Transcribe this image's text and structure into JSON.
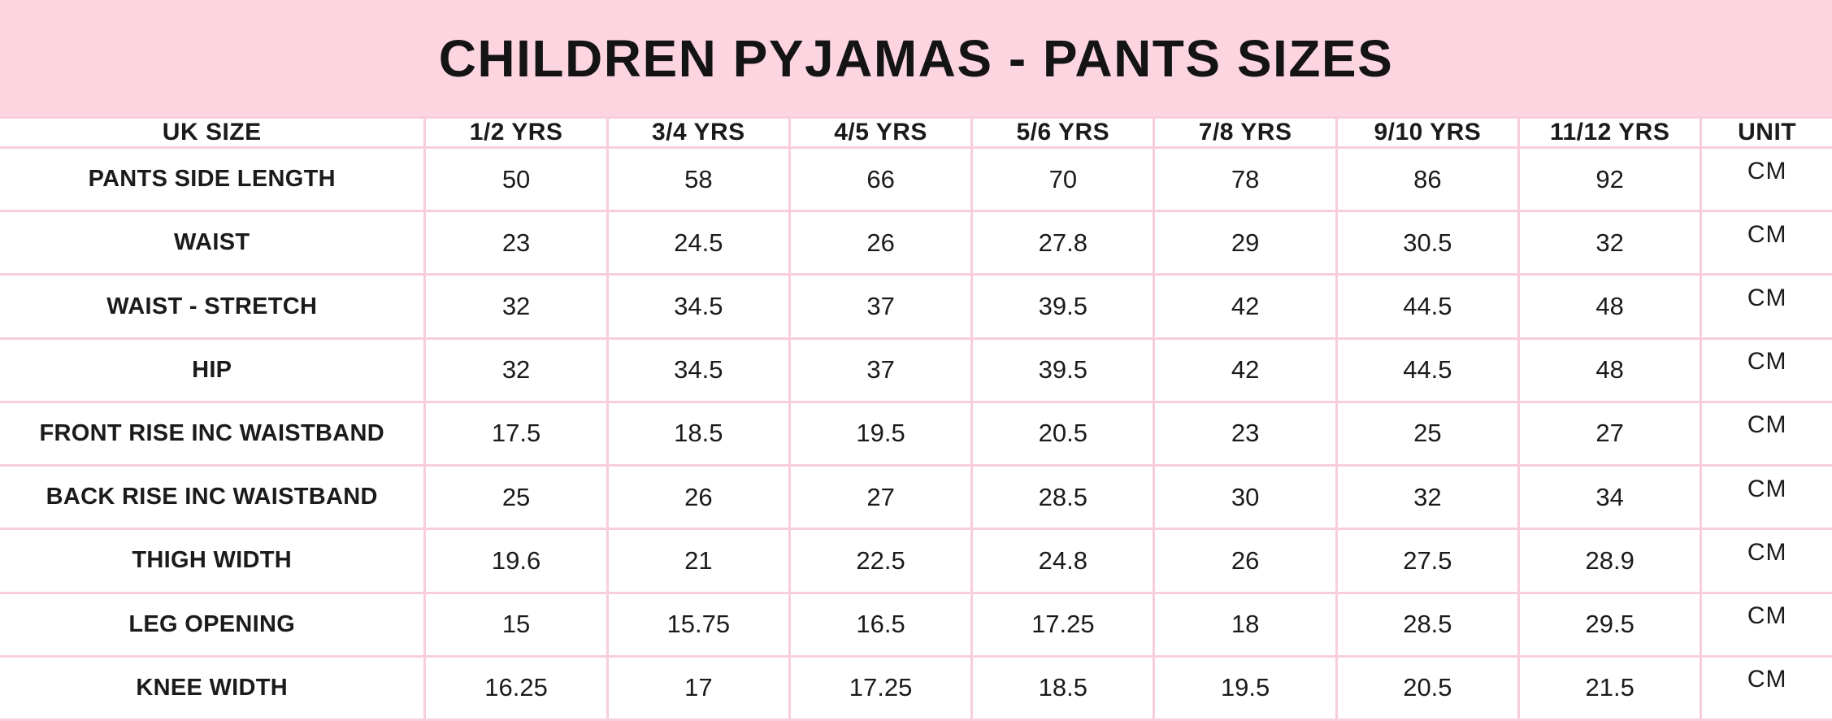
{
  "header": {
    "title": "CHILDREN PYJAMAS - PANTS SIZES"
  },
  "colors": {
    "band_pink": "#fcd5e0",
    "grid_pink": "#f8cddc",
    "text": "#1b1b1b",
    "cell_background": "#ffffff"
  },
  "chart_data": {
    "type": "table",
    "title": "CHILDREN PYJAMAS - PANTS SIZES",
    "columns": [
      "UK SIZE",
      "1/2 YRS",
      "3/4 YRS",
      "4/5 YRS",
      "5/6 YRS",
      "7/8 YRS",
      "9/10 YRS",
      "11/12 YRS",
      "UNIT"
    ],
    "rows": [
      {
        "label": "PANTS SIDE LENGTH",
        "values": [
          "50",
          "58",
          "66",
          "70",
          "78",
          "86",
          "92"
        ],
        "unit": "CM"
      },
      {
        "label": "WAIST",
        "values": [
          "23",
          "24.5",
          "26",
          "27.8",
          "29",
          "30.5",
          "32"
        ],
        "unit": "CM"
      },
      {
        "label": "WAIST - STRETCH",
        "values": [
          "32",
          "34.5",
          "37",
          "39.5",
          "42",
          "44.5",
          "48"
        ],
        "unit": "CM"
      },
      {
        "label": "HIP",
        "values": [
          "32",
          "34.5",
          "37",
          "39.5",
          "42",
          "44.5",
          "48"
        ],
        "unit": "CM"
      },
      {
        "label": "FRONT RISE INC WAISTBAND",
        "values": [
          "17.5",
          "18.5",
          "19.5",
          "20.5",
          "23",
          "25",
          "27"
        ],
        "unit": "CM"
      },
      {
        "label": "BACK RISE INC WAISTBAND",
        "values": [
          "25",
          "26",
          "27",
          "28.5",
          "30",
          "32",
          "34"
        ],
        "unit": "CM"
      },
      {
        "label": "THIGH WIDTH",
        "values": [
          "19.6",
          "21",
          "22.5",
          "24.8",
          "26",
          "27.5",
          "28.9"
        ],
        "unit": "CM"
      },
      {
        "label": "LEG OPENING",
        "values": [
          "15",
          "15.75",
          "16.5",
          "17.25",
          "18",
          "28.5",
          "29.5"
        ],
        "unit": "CM"
      },
      {
        "label": "KNEE WIDTH",
        "values": [
          "16.25",
          "17",
          "17.25",
          "18.5",
          "19.5",
          "20.5",
          "21.5"
        ],
        "unit": "CM"
      }
    ],
    "layout": {
      "label_col_width_pct": 23.2,
      "data_col_width_pct": 9.95,
      "unit_col_width_pct": 7.15,
      "grid": "on"
    }
  }
}
